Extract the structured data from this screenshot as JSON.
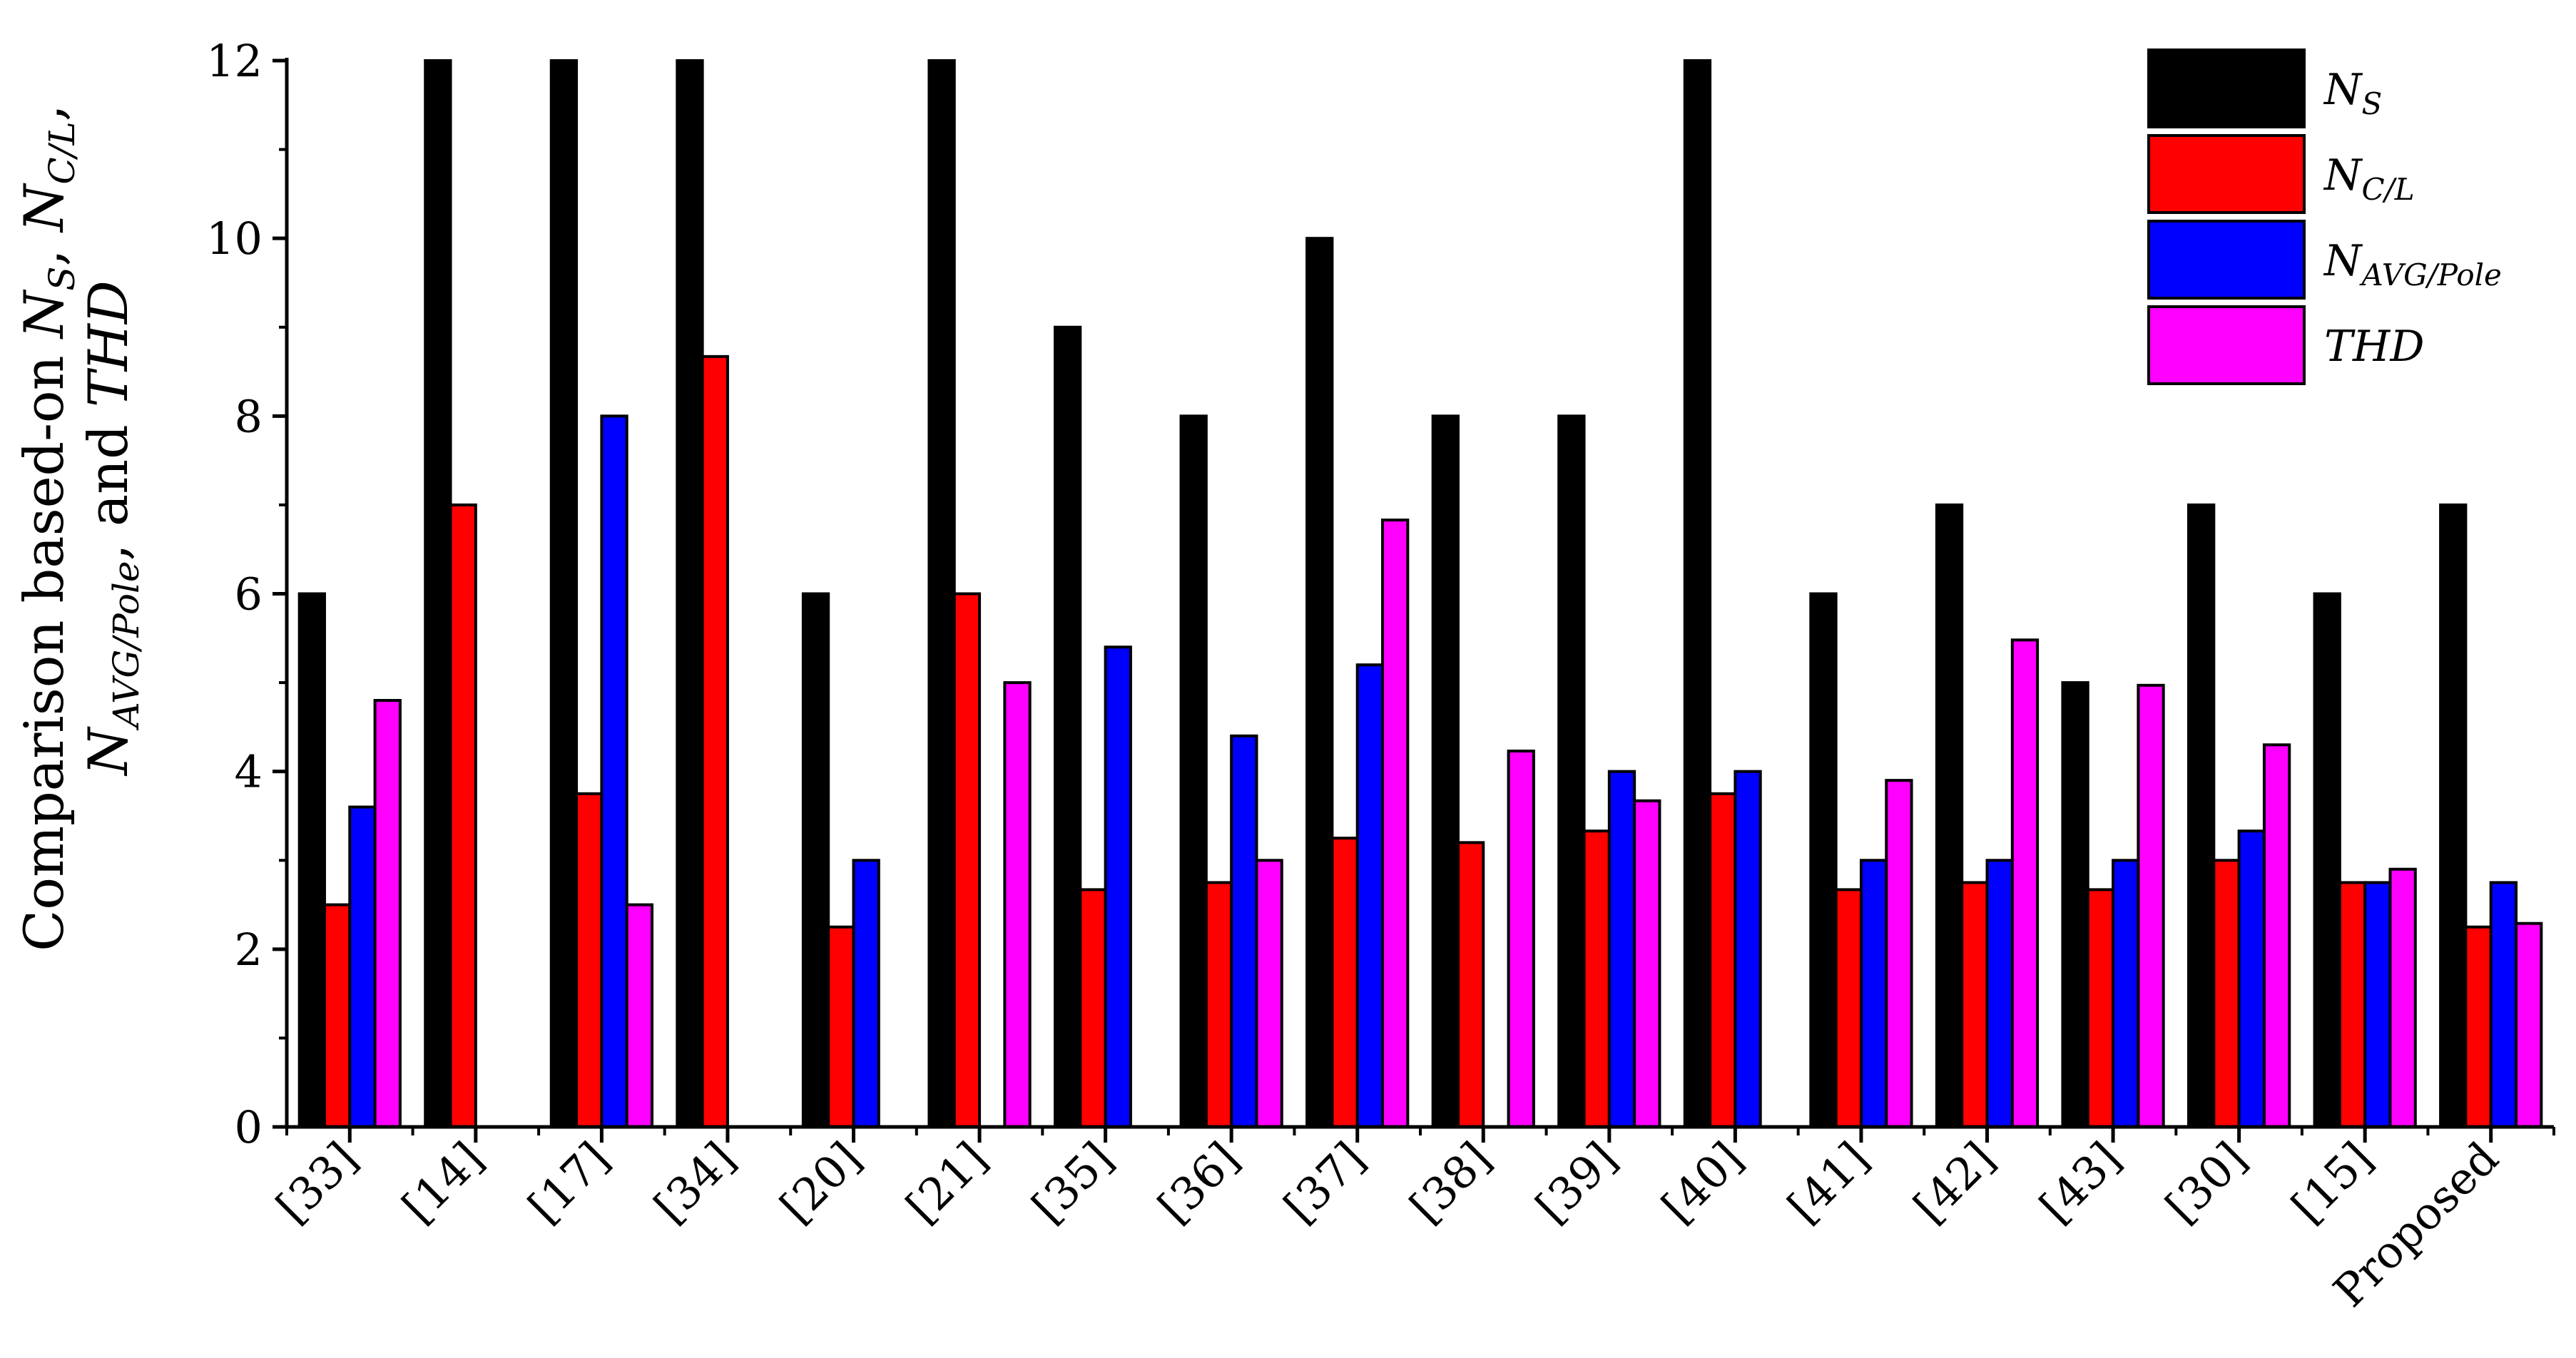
{
  "chart_data": {
    "type": "bar",
    "ylabel": {
      "line1": [
        "Comparison based-on ",
        "N",
        "S",
        ", ",
        "N",
        "C/L",
        ","
      ],
      "line2": [
        "N",
        "AVG/Pole",
        ", and ",
        "THD"
      ]
    },
    "ylim": [
      0,
      12
    ],
    "yticks": [
      0,
      2,
      4,
      6,
      8,
      10,
      12
    ],
    "grid": false,
    "legend_position": "top-right",
    "categories": [
      "[33]",
      "[14]",
      "[17]",
      "[34]",
      "[20]",
      "[21]",
      "[35]",
      "[36]",
      "[37]",
      "[38]",
      "[39]",
      "[40]",
      "[41]",
      "[42]",
      "[43]",
      "[30]",
      "[15]",
      "Proposed"
    ],
    "series": [
      {
        "name": "N_S",
        "legend": {
          "main": "N",
          "sub": "S"
        },
        "color": "#000000",
        "values": [
          6,
          12,
          12,
          12,
          6,
          12,
          9,
          8,
          10,
          8,
          8,
          12,
          6,
          7,
          5,
          7,
          6,
          7
        ]
      },
      {
        "name": "N_C/L",
        "legend": {
          "main": "N",
          "sub": "C/L"
        },
        "color": "#ff0000",
        "values": [
          2.5,
          7,
          3.75,
          8.67,
          2.25,
          6,
          2.67,
          2.75,
          3.25,
          3.2,
          3.33,
          3.75,
          2.67,
          2.75,
          2.67,
          3,
          2.75,
          2.25
        ]
      },
      {
        "name": "N_AVG/Pole",
        "legend": {
          "main": "N",
          "sub": "AVG/Pole"
        },
        "color": "#0000ff",
        "values": [
          3.6,
          null,
          8,
          null,
          3,
          null,
          5.4,
          4.4,
          5.2,
          null,
          4,
          4,
          3,
          3,
          3,
          3.33,
          2.75,
          2.75
        ]
      },
      {
        "name": "THD",
        "legend": {
          "main": "THD",
          "sub": ""
        },
        "color": "#ff00ff",
        "values": [
          4.8,
          null,
          2.5,
          null,
          null,
          5,
          null,
          3,
          6.83,
          4.23,
          3.67,
          null,
          3.9,
          5.48,
          4.97,
          4.3,
          2.9,
          2.29
        ]
      }
    ]
  }
}
